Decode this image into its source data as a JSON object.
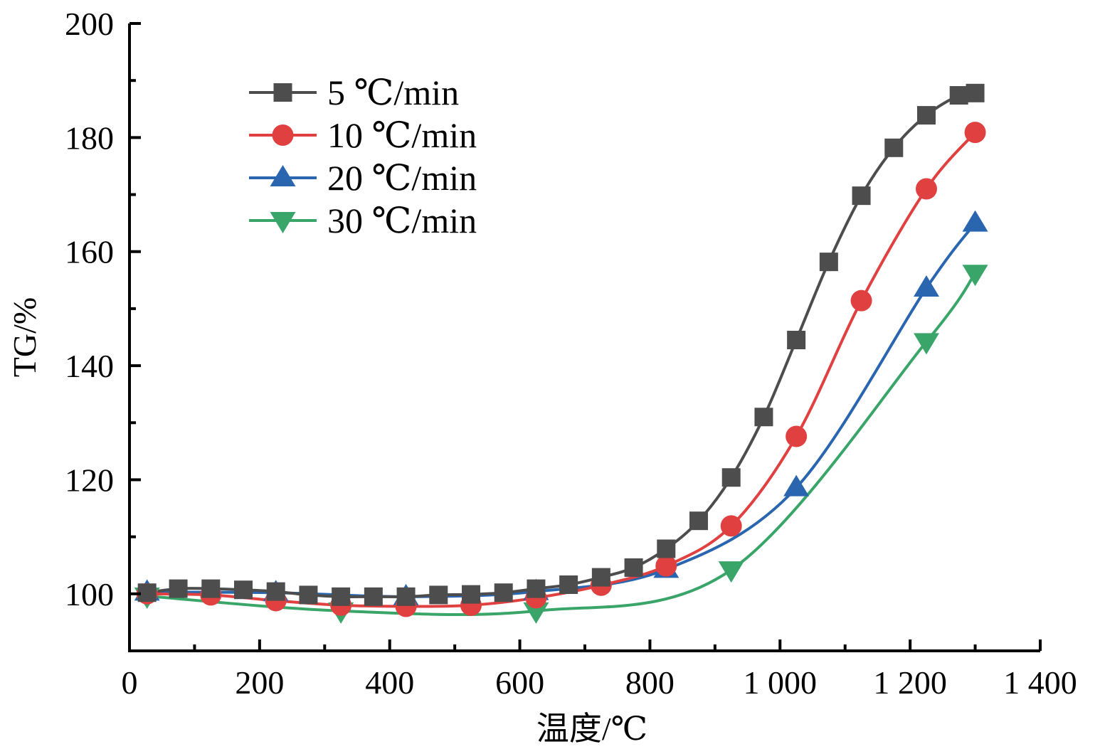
{
  "chart_data": {
    "type": "line",
    "title": "",
    "xlabel": "温度/℃",
    "ylabel": "TG/%",
    "xlim": [
      0,
      1400
    ],
    "ylim": [
      90,
      200
    ],
    "xticks": [
      0,
      200,
      400,
      600,
      800,
      1000,
      1200,
      1400
    ],
    "xtick_labels": [
      "0",
      "200",
      "400",
      "600",
      "800",
      "1 000",
      "1 200",
      "1 400"
    ],
    "xminor_step": 100,
    "yticks": [
      100,
      120,
      140,
      160,
      180,
      200
    ],
    "ytick_labels": [
      "100",
      "120",
      "140",
      "160",
      "180",
      "200"
    ],
    "yminor_step": 10,
    "grid": false,
    "legend_position": "top-left",
    "series": [
      {
        "name": "5 ℃/min",
        "color": "#4d4d4d",
        "marker": "square",
        "x": [
          27,
          75,
          125,
          175,
          225,
          275,
          325,
          375,
          425,
          475,
          525,
          575,
          625,
          675,
          725,
          775,
          825,
          875,
          925,
          975,
          1025,
          1075,
          1125,
          1175,
          1225,
          1275,
          1300
        ],
        "y": [
          100.2,
          100.9,
          100.9,
          100.7,
          100.4,
          99.8,
          99.5,
          99.5,
          99.5,
          99.8,
          99.9,
          100.2,
          100.9,
          101.6,
          102.9,
          104.6,
          107.9,
          112.8,
          120.4,
          131.0,
          144.5,
          158.2,
          169.8,
          178.2,
          183.9,
          187.4,
          187.8
        ]
      },
      {
        "name": "10 ℃/min",
        "color": "#e04040",
        "marker": "circle",
        "x": [
          27,
          125,
          225,
          325,
          425,
          525,
          625,
          725,
          825,
          925,
          1025,
          1125,
          1225,
          1300
        ],
        "y": [
          100.0,
          99.8,
          98.8,
          98.0,
          97.8,
          98.0,
          99.3,
          101.5,
          104.9,
          111.9,
          127.6,
          151.4,
          171.0,
          180.9
        ]
      },
      {
        "name": "20 ℃/min",
        "color": "#2a66b0",
        "marker": "triangle-up",
        "x": [
          27,
          225,
          425,
          625,
          825,
          1025,
          1225,
          1300
        ],
        "y": [
          100.3,
          100.2,
          99.5,
          100.4,
          104.3,
          118.6,
          153.6,
          165.0
        ]
      },
      {
        "name": "30 ℃/min",
        "color": "#3aa569",
        "marker": "triangle-down",
        "x": [
          27,
          325,
          625,
          925,
          1225,
          1300
        ],
        "y": [
          99.6,
          97.0,
          97.0,
          104.2,
          144.2,
          156.2
        ]
      }
    ]
  }
}
